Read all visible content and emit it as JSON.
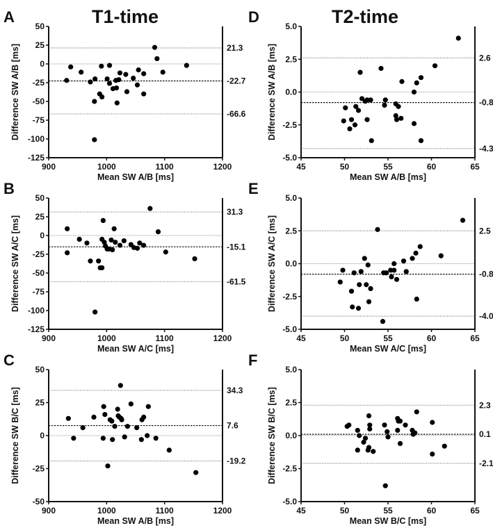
{
  "column_titles": [
    "T1-time",
    "T2-time"
  ],
  "chart_data": [
    {
      "type": "scatter",
      "panel": "A",
      "column": 0,
      "row": 0,
      "xlabel": "Mean SW A/B [ms]",
      "ylabel": "Difference SW A/B [ms]",
      "xlim": [
        900,
        1200
      ],
      "xticks": [
        900,
        1000,
        1100,
        1200
      ],
      "ylim": [
        -125,
        50
      ],
      "yticks": [
        50,
        25,
        0,
        -25,
        -50,
        -75,
        -100,
        -125
      ],
      "mean": -22.7,
      "loa_upper": 21.3,
      "loa_lower": -66.6,
      "line_labels": [
        "21.3",
        "-22.7",
        "-66.6"
      ],
      "points": [
        [
          931,
          -22
        ],
        [
          938,
          -4
        ],
        [
          956,
          -11
        ],
        [
          972,
          -24
        ],
        [
          980,
          -20
        ],
        [
          979,
          -50
        ],
        [
          979,
          -101
        ],
        [
          988,
          -40
        ],
        [
          992,
          -44
        ],
        [
          991,
          -3
        ],
        [
          1005,
          -2
        ],
        [
          1001,
          -20
        ],
        [
          1005,
          -26
        ],
        [
          1011,
          -33
        ],
        [
          1016,
          -22
        ],
        [
          1017,
          -32
        ],
        [
          1021,
          -21
        ],
        [
          1018,
          -52
        ],
        [
          1023,
          -12
        ],
        [
          1033,
          -14
        ],
        [
          1035,
          -37
        ],
        [
          1046,
          -19
        ],
        [
          1053,
          -28
        ],
        [
          1055,
          -8
        ],
        [
          1064,
          -13
        ],
        [
          1064,
          -40
        ],
        [
          1083,
          22
        ],
        [
          1087,
          7
        ],
        [
          1097,
          -11
        ],
        [
          1138,
          -2
        ]
      ]
    },
    {
      "type": "scatter",
      "panel": "B",
      "column": 0,
      "row": 1,
      "xlabel": "Mean SW A/C [ms]",
      "ylabel": "Difference SW A/C [ms]",
      "xlim": [
        900,
        1200
      ],
      "xticks": [
        900,
        1000,
        1100,
        1200
      ],
      "ylim": [
        -125,
        50
      ],
      "yticks": [
        50,
        25,
        0,
        -25,
        -50,
        -75,
        -100,
        -125
      ],
      "mean": -15.1,
      "loa_upper": 31.3,
      "loa_lower": -61.5,
      "line_labels": [
        "31.3",
        "-15.1",
        "-61.5"
      ],
      "points": [
        [
          932,
          9
        ],
        [
          932,
          -23
        ],
        [
          953,
          -5
        ],
        [
          966,
          -10
        ],
        [
          972,
          -34
        ],
        [
          980,
          -102
        ],
        [
          986,
          -34
        ],
        [
          989,
          -43
        ],
        [
          992,
          -43
        ],
        [
          994,
          20
        ],
        [
          992,
          -5
        ],
        [
          996,
          -9
        ],
        [
          998,
          -14
        ],
        [
          1001,
          -18
        ],
        [
          1004,
          -18
        ],
        [
          1008,
          -6
        ],
        [
          1010,
          -19
        ],
        [
          1013,
          9
        ],
        [
          1015,
          -9
        ],
        [
          1023,
          -13
        ],
        [
          1030,
          -7
        ],
        [
          1042,
          -12
        ],
        [
          1047,
          -16
        ],
        [
          1053,
          -17
        ],
        [
          1057,
          -10
        ],
        [
          1064,
          -13
        ],
        [
          1075,
          36
        ],
        [
          1089,
          5
        ],
        [
          1102,
          -22
        ],
        [
          1152,
          -31
        ]
      ]
    },
    {
      "type": "scatter",
      "panel": "C",
      "column": 0,
      "row": 2,
      "xlabel": "Mean SW A/B [ms]",
      "ylabel": "Difference SW B/C [ms]",
      "xlim": [
        900,
        1200
      ],
      "xticks": [
        900,
        1000,
        1100,
        1200
      ],
      "ylim": [
        -50,
        50
      ],
      "yticks": [
        50,
        25,
        0,
        -25,
        -50
      ],
      "mean": 7.6,
      "loa_upper": 34.3,
      "loa_lower": -19.2,
      "line_labels": [
        "34.3",
        "7.6",
        "-19.2"
      ],
      "points": [
        [
          934,
          13
        ],
        [
          943,
          -2
        ],
        [
          959,
          6
        ],
        [
          978,
          14
        ],
        [
          994,
          -2
        ],
        [
          995,
          22
        ],
        [
          997,
          16
        ],
        [
          1006,
          12
        ],
        [
          1009,
          11
        ],
        [
          1010,
          -3
        ],
        [
          1014,
          7
        ],
        [
          1019,
          20
        ],
        [
          1020,
          15
        ],
        [
          1022,
          14
        ],
        [
          1025,
          13
        ],
        [
          1026,
          12
        ],
        [
          1024,
          38
        ],
        [
          1031,
          -1
        ],
        [
          1036,
          7
        ],
        [
          1042,
          24
        ],
        [
          1052,
          6
        ],
        [
          1060,
          -3
        ],
        [
          1061,
          12
        ],
        [
          1064,
          14
        ],
        [
          1070,
          0
        ],
        [
          1072,
          22
        ],
        [
          1085,
          -2
        ],
        [
          1002,
          -23
        ],
        [
          1108,
          -11
        ],
        [
          1154,
          -28
        ]
      ]
    },
    {
      "type": "scatter",
      "panel": "D",
      "column": 1,
      "row": 0,
      "xlabel": "Mean SW A/B [ms]",
      "ylabel": "Difference SW A/B [ms]",
      "xlim": [
        45,
        65
      ],
      "xticks": [
        45,
        50,
        55,
        60,
        65
      ],
      "ylim": [
        -5,
        5
      ],
      "yticks": [
        5,
        2.5,
        0,
        -2.5,
        -5
      ],
      "mean": -0.8,
      "loa_upper": 2.6,
      "loa_lower": -4.3,
      "line_labels": [
        "2.6",
        "-0.8",
        "-4.3"
      ],
      "points": [
        [
          49.9,
          -2.2
        ],
        [
          50.1,
          -1.2
        ],
        [
          50.6,
          -2.8
        ],
        [
          50.8,
          -2.1
        ],
        [
          51.2,
          -2.5
        ],
        [
          51.3,
          -1.1
        ],
        [
          51.6,
          -1.4
        ],
        [
          51.8,
          1.5
        ],
        [
          52.0,
          -0.5
        ],
        [
          52.4,
          -0.7
        ],
        [
          52.6,
          -2.1
        ],
        [
          52.6,
          -0.6
        ],
        [
          53.0,
          -0.6
        ],
        [
          53.1,
          -3.7
        ],
        [
          54.2,
          1.8
        ],
        [
          54.6,
          -1.0
        ],
        [
          54.7,
          -0.6
        ],
        [
          55.9,
          -0.9
        ],
        [
          56.2,
          -1.1
        ],
        [
          55.9,
          -1.8
        ],
        [
          56.0,
          -2.1
        ],
        [
          56.5,
          -2.0
        ],
        [
          56.6,
          0.8
        ],
        [
          58.0,
          0.0
        ],
        [
          58.0,
          -2.4
        ],
        [
          58.3,
          0.7
        ],
        [
          58.8,
          1.1
        ],
        [
          58.8,
          -3.7
        ],
        [
          60.4,
          2.0
        ],
        [
          63.1,
          4.1
        ]
      ]
    },
    {
      "type": "scatter",
      "panel": "E",
      "column": 1,
      "row": 1,
      "xlabel": "Mean SW A/C [ms]",
      "ylabel": "Difference SW A/C [ms]",
      "xlim": [
        45,
        65
      ],
      "xticks": [
        45,
        50,
        55,
        60,
        65
      ],
      "ylim": [
        -5,
        5
      ],
      "yticks": [
        5,
        2.5,
        0,
        -2.5,
        -5
      ],
      "mean": -0.8,
      "loa_upper": 2.5,
      "loa_lower": -4.0,
      "line_labels": [
        "2.5",
        "-0.8",
        "-4.0"
      ],
      "points": [
        [
          49.5,
          -1.4
        ],
        [
          49.8,
          -0.5
        ],
        [
          50.8,
          -2.1
        ],
        [
          50.9,
          -3.3
        ],
        [
          51.1,
          -0.7
        ],
        [
          51.7,
          -1.6
        ],
        [
          51.9,
          -0.6
        ],
        [
          51.6,
          -3.4
        ],
        [
          52.3,
          0.4
        ],
        [
          52.5,
          -1.6
        ],
        [
          52.7,
          -0.1
        ],
        [
          52.8,
          -2.9
        ],
        [
          53.0,
          -1.9
        ],
        [
          53.8,
          2.6
        ],
        [
          54.5,
          -0.7
        ],
        [
          54.8,
          -0.7
        ],
        [
          54.4,
          -4.4
        ],
        [
          55.3,
          -0.5
        ],
        [
          55.4,
          -1.0
        ],
        [
          55.7,
          0.0
        ],
        [
          55.7,
          -0.5
        ],
        [
          56.0,
          -1.2
        ],
        [
          56.8,
          0.2
        ],
        [
          57.1,
          -0.6
        ],
        [
          57.8,
          0.4
        ],
        [
          58.2,
          0.8
        ],
        [
          58.3,
          -2.7
        ],
        [
          58.7,
          1.3
        ],
        [
          61.1,
          0.6
        ],
        [
          63.6,
          3.3
        ]
      ]
    },
    {
      "type": "scatter",
      "panel": "F",
      "column": 1,
      "row": 2,
      "xlabel": "Mean SW B/C [ms]",
      "ylabel": "Difference SW B/C [ms]",
      "xlim": [
        45,
        65
      ],
      "xticks": [
        45,
        50,
        55,
        60,
        65
      ],
      "ylim": [
        -5,
        5
      ],
      "yticks": [
        5,
        2.5,
        0,
        -2.5,
        -5
      ],
      "mean": 0.1,
      "loa_upper": 2.3,
      "loa_lower": -2.1,
      "line_labels": [
        "2.3",
        "0.1",
        "-2.1"
      ],
      "points": [
        [
          50.3,
          0.7
        ],
        [
          50.5,
          0.8
        ],
        [
          51.5,
          -1.1
        ],
        [
          51.5,
          0.4
        ],
        [
          51.7,
          0.0
        ],
        [
          52.2,
          -0.5
        ],
        [
          52.4,
          -0.2
        ],
        [
          52.7,
          -1.1
        ],
        [
          52.8,
          -0.9
        ],
        [
          52.8,
          1.5
        ],
        [
          52.9,
          0.8
        ],
        [
          52.9,
          0.5
        ],
        [
          53.3,
          -1.2
        ],
        [
          54.6,
          0.8
        ],
        [
          54.7,
          -3.8
        ],
        [
          54.9,
          0.3
        ],
        [
          55.0,
          -0.1
        ],
        [
          56.1,
          0.4
        ],
        [
          56.1,
          1.3
        ],
        [
          56.2,
          1.1
        ],
        [
          56.4,
          1.1
        ],
        [
          56.4,
          -0.6
        ],
        [
          57.0,
          0.8
        ],
        [
          57.8,
          0.4
        ],
        [
          57.9,
          0.1
        ],
        [
          58.1,
          0.2
        ],
        [
          58.3,
          1.8
        ],
        [
          60.1,
          1.0
        ],
        [
          60.1,
          -1.4
        ],
        [
          61.5,
          -0.8
        ]
      ]
    }
  ]
}
